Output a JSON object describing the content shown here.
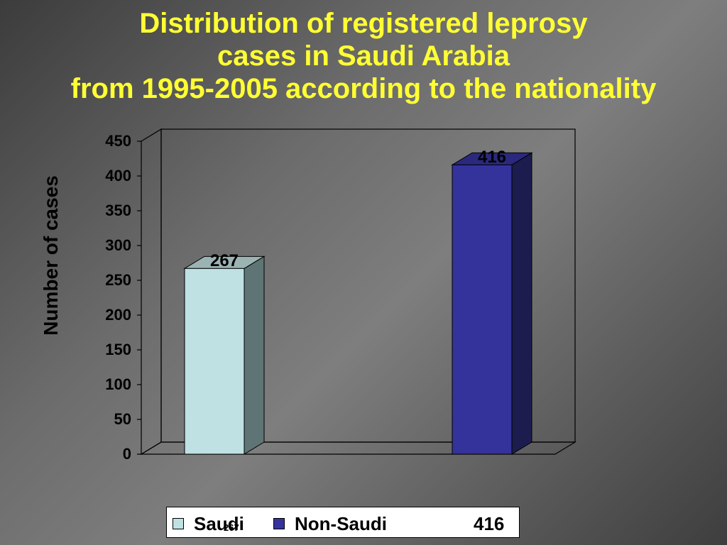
{
  "title": {
    "line1": "Distribution of registered leprosy",
    "line2": "cases in Saudi Arabia",
    "line3": "from 1995-2005 according to the nationality"
  },
  "colors": {
    "title": "#ffff33",
    "saudi": "#bfe1e3",
    "non_saudi": "#34339b"
  },
  "legend": {
    "items": [
      {
        "label": "Saudi",
        "value": "267"
      },
      {
        "label": "Non-Saudi",
        "value": "416"
      }
    ]
  },
  "chart_data": {
    "type": "bar",
    "categories": [
      "Saudi",
      "Non-Saudi"
    ],
    "values": [
      267,
      416
    ],
    "data_labels": [
      "267",
      "416"
    ],
    "title": "Distribution of registered leprosy cases in Saudi Arabia from 1995-2005 according to the nationality",
    "xlabel": "",
    "ylabel": "Number of cases",
    "ylim": [
      0,
      450
    ],
    "yticks": [
      "0",
      "50",
      "100",
      "150",
      "200",
      "250",
      "300",
      "350",
      "400",
      "450"
    ],
    "grid": false,
    "legend_position": "bottom"
  }
}
